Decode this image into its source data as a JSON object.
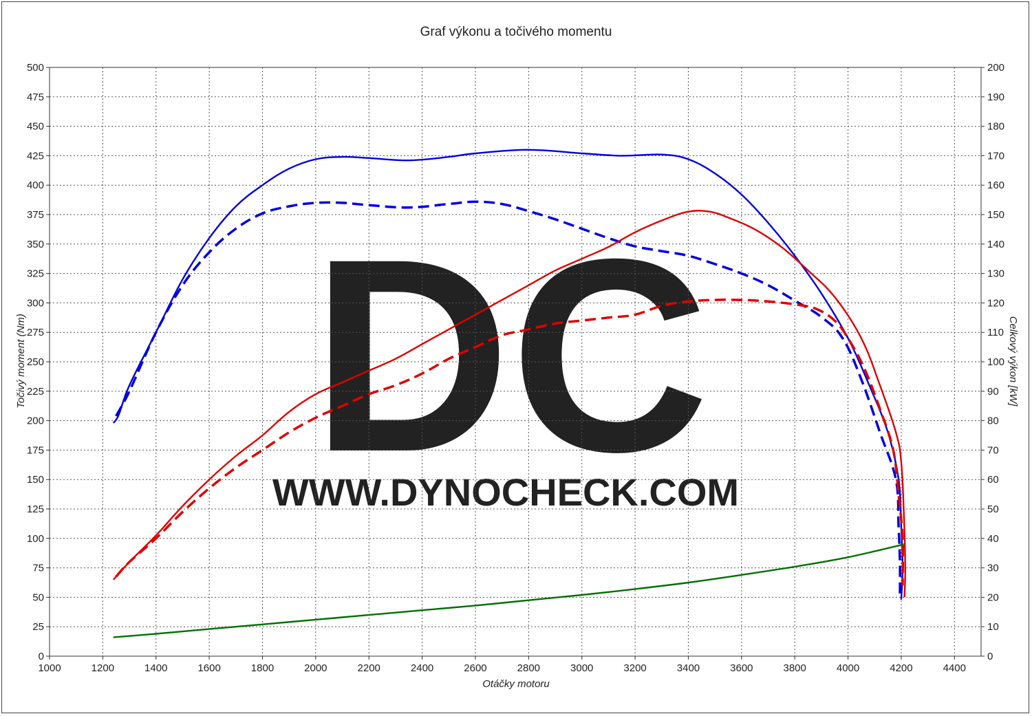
{
  "chart_data": {
    "type": "line",
    "title": "Graf výkonu a točivého momentu",
    "xlabel": "Otáčky motoru",
    "ylabel_left": "Točivý moment (Nm)",
    "ylabel_right": "Celkový výkon [kW]",
    "xlim": [
      1000,
      4500
    ],
    "ylim_left": [
      0,
      500
    ],
    "ylim_right": [
      0,
      200
    ],
    "grid": true,
    "x_ticks": [
      1000,
      1200,
      1400,
      1600,
      1800,
      2000,
      2200,
      2400,
      2600,
      2800,
      3000,
      3200,
      3400,
      3600,
      3800,
      4000,
      4200,
      4400
    ],
    "y_ticks_left": [
      0,
      25,
      50,
      75,
      100,
      125,
      150,
      175,
      200,
      225,
      250,
      275,
      300,
      325,
      350,
      375,
      400,
      425,
      450,
      475,
      500
    ],
    "y_ticks_right": [
      0,
      10,
      20,
      30,
      40,
      50,
      60,
      70,
      80,
      90,
      100,
      110,
      120,
      130,
      140,
      150,
      160,
      170,
      180,
      190,
      200
    ],
    "watermark": {
      "big": "DC",
      "url": "WWW.DYNOCHECK.COM"
    },
    "series": [
      {
        "axis": "left",
        "color": "#0000e0",
        "style": "solid",
        "points": [
          [
            1240,
            198
          ],
          [
            1260,
            205
          ],
          [
            1300,
            230
          ],
          [
            1400,
            275
          ],
          [
            1500,
            320
          ],
          [
            1600,
            355
          ],
          [
            1700,
            382
          ],
          [
            1800,
            400
          ],
          [
            1900,
            414
          ],
          [
            2000,
            422
          ],
          [
            2100,
            424
          ],
          [
            2200,
            423
          ],
          [
            2350,
            421
          ],
          [
            2500,
            424
          ],
          [
            2600,
            427
          ],
          [
            2800,
            430
          ],
          [
            3000,
            427
          ],
          [
            3150,
            425
          ],
          [
            3300,
            426
          ],
          [
            3400,
            422
          ],
          [
            3500,
            410
          ],
          [
            3600,
            392
          ],
          [
            3700,
            368
          ],
          [
            3800,
            340
          ],
          [
            3900,
            308
          ],
          [
            4000,
            270
          ],
          [
            4080,
            230
          ],
          [
            4150,
            190
          ],
          [
            4190,
            150
          ],
          [
            4200,
            110
          ],
          [
            4205,
            75
          ],
          [
            4200,
            48
          ]
        ]
      },
      {
        "axis": "left",
        "color": "#0000e0",
        "style": "dashed",
        "points": [
          [
            1250,
            204
          ],
          [
            1300,
            225
          ],
          [
            1400,
            275
          ],
          [
            1500,
            315
          ],
          [
            1600,
            343
          ],
          [
            1700,
            363
          ],
          [
            1800,
            376
          ],
          [
            1900,
            382
          ],
          [
            2000,
            385
          ],
          [
            2100,
            385
          ],
          [
            2200,
            383
          ],
          [
            2350,
            381
          ],
          [
            2500,
            384
          ],
          [
            2600,
            386
          ],
          [
            2700,
            384
          ],
          [
            2800,
            378
          ],
          [
            2900,
            371
          ],
          [
            3000,
            363
          ],
          [
            3100,
            355
          ],
          [
            3200,
            348
          ],
          [
            3300,
            344
          ],
          [
            3400,
            340
          ],
          [
            3500,
            333
          ],
          [
            3600,
            325
          ],
          [
            3700,
            315
          ],
          [
            3800,
            302
          ],
          [
            3900,
            288
          ],
          [
            3980,
            270
          ],
          [
            4050,
            235
          ],
          [
            4120,
            190
          ],
          [
            4180,
            150
          ],
          [
            4190,
            110
          ],
          [
            4195,
            80
          ],
          [
            4195,
            50
          ]
        ]
      },
      {
        "axis": "right",
        "color": "#e00000",
        "style": "solid",
        "points": [
          [
            1240,
            26
          ],
          [
            1300,
            32
          ],
          [
            1400,
            41
          ],
          [
            1500,
            51
          ],
          [
            1600,
            60
          ],
          [
            1700,
            68
          ],
          [
            1800,
            75
          ],
          [
            1900,
            83
          ],
          [
            2000,
            89
          ],
          [
            2100,
            93
          ],
          [
            2200,
            97
          ],
          [
            2300,
            101
          ],
          [
            2400,
            106
          ],
          [
            2500,
            111
          ],
          [
            2600,
            116
          ],
          [
            2700,
            121
          ],
          [
            2800,
            126
          ],
          [
            2900,
            131
          ],
          [
            3000,
            135
          ],
          [
            3100,
            139
          ],
          [
            3200,
            144
          ],
          [
            3300,
            148
          ],
          [
            3400,
            151
          ],
          [
            3480,
            151
          ],
          [
            3550,
            149
          ],
          [
            3650,
            145
          ],
          [
            3750,
            139
          ],
          [
            3850,
            131
          ],
          [
            3950,
            122
          ],
          [
            4050,
            108
          ],
          [
            4120,
            92
          ],
          [
            4180,
            76
          ],
          [
            4200,
            66
          ],
          [
            4210,
            48
          ],
          [
            4215,
            30
          ],
          [
            4212,
            20
          ]
        ]
      },
      {
        "axis": "right",
        "color": "#e00000",
        "style": "dashed",
        "points": [
          [
            1250,
            27
          ],
          [
            1300,
            32
          ],
          [
            1400,
            40
          ],
          [
            1500,
            49
          ],
          [
            1600,
            57
          ],
          [
            1700,
            64
          ],
          [
            1800,
            70
          ],
          [
            1900,
            76
          ],
          [
            2000,
            81
          ],
          [
            2100,
            85
          ],
          [
            2200,
            89
          ],
          [
            2300,
            92
          ],
          [
            2400,
            96
          ],
          [
            2500,
            101
          ],
          [
            2600,
            105
          ],
          [
            2700,
            109
          ],
          [
            2800,
            111
          ],
          [
            2900,
            113
          ],
          [
            3000,
            114
          ],
          [
            3100,
            115
          ],
          [
            3200,
            116
          ],
          [
            3300,
            119
          ],
          [
            3400,
            120.5
          ],
          [
            3500,
            121
          ],
          [
            3600,
            121
          ],
          [
            3700,
            120.5
          ],
          [
            3800,
            119.5
          ],
          [
            3880,
            118
          ],
          [
            3950,
            114
          ],
          [
            4000,
            108
          ],
          [
            4060,
            98
          ],
          [
            4120,
            84
          ],
          [
            4170,
            70
          ],
          [
            4190,
            55
          ],
          [
            4205,
            40
          ],
          [
            4205,
            24
          ]
        ]
      },
      {
        "axis": "left",
        "color": "#007000",
        "style": "solid",
        "points": [
          [
            1240,
            16
          ],
          [
            1400,
            19
          ],
          [
            1600,
            23
          ],
          [
            1800,
            27
          ],
          [
            2000,
            31
          ],
          [
            2200,
            35
          ],
          [
            2400,
            39
          ],
          [
            2600,
            43
          ],
          [
            2800,
            47.5
          ],
          [
            3000,
            52
          ],
          [
            3200,
            57
          ],
          [
            3400,
            62.5
          ],
          [
            3600,
            69
          ],
          [
            3800,
            76
          ],
          [
            4000,
            84
          ],
          [
            4210,
            95
          ]
        ]
      }
    ]
  }
}
